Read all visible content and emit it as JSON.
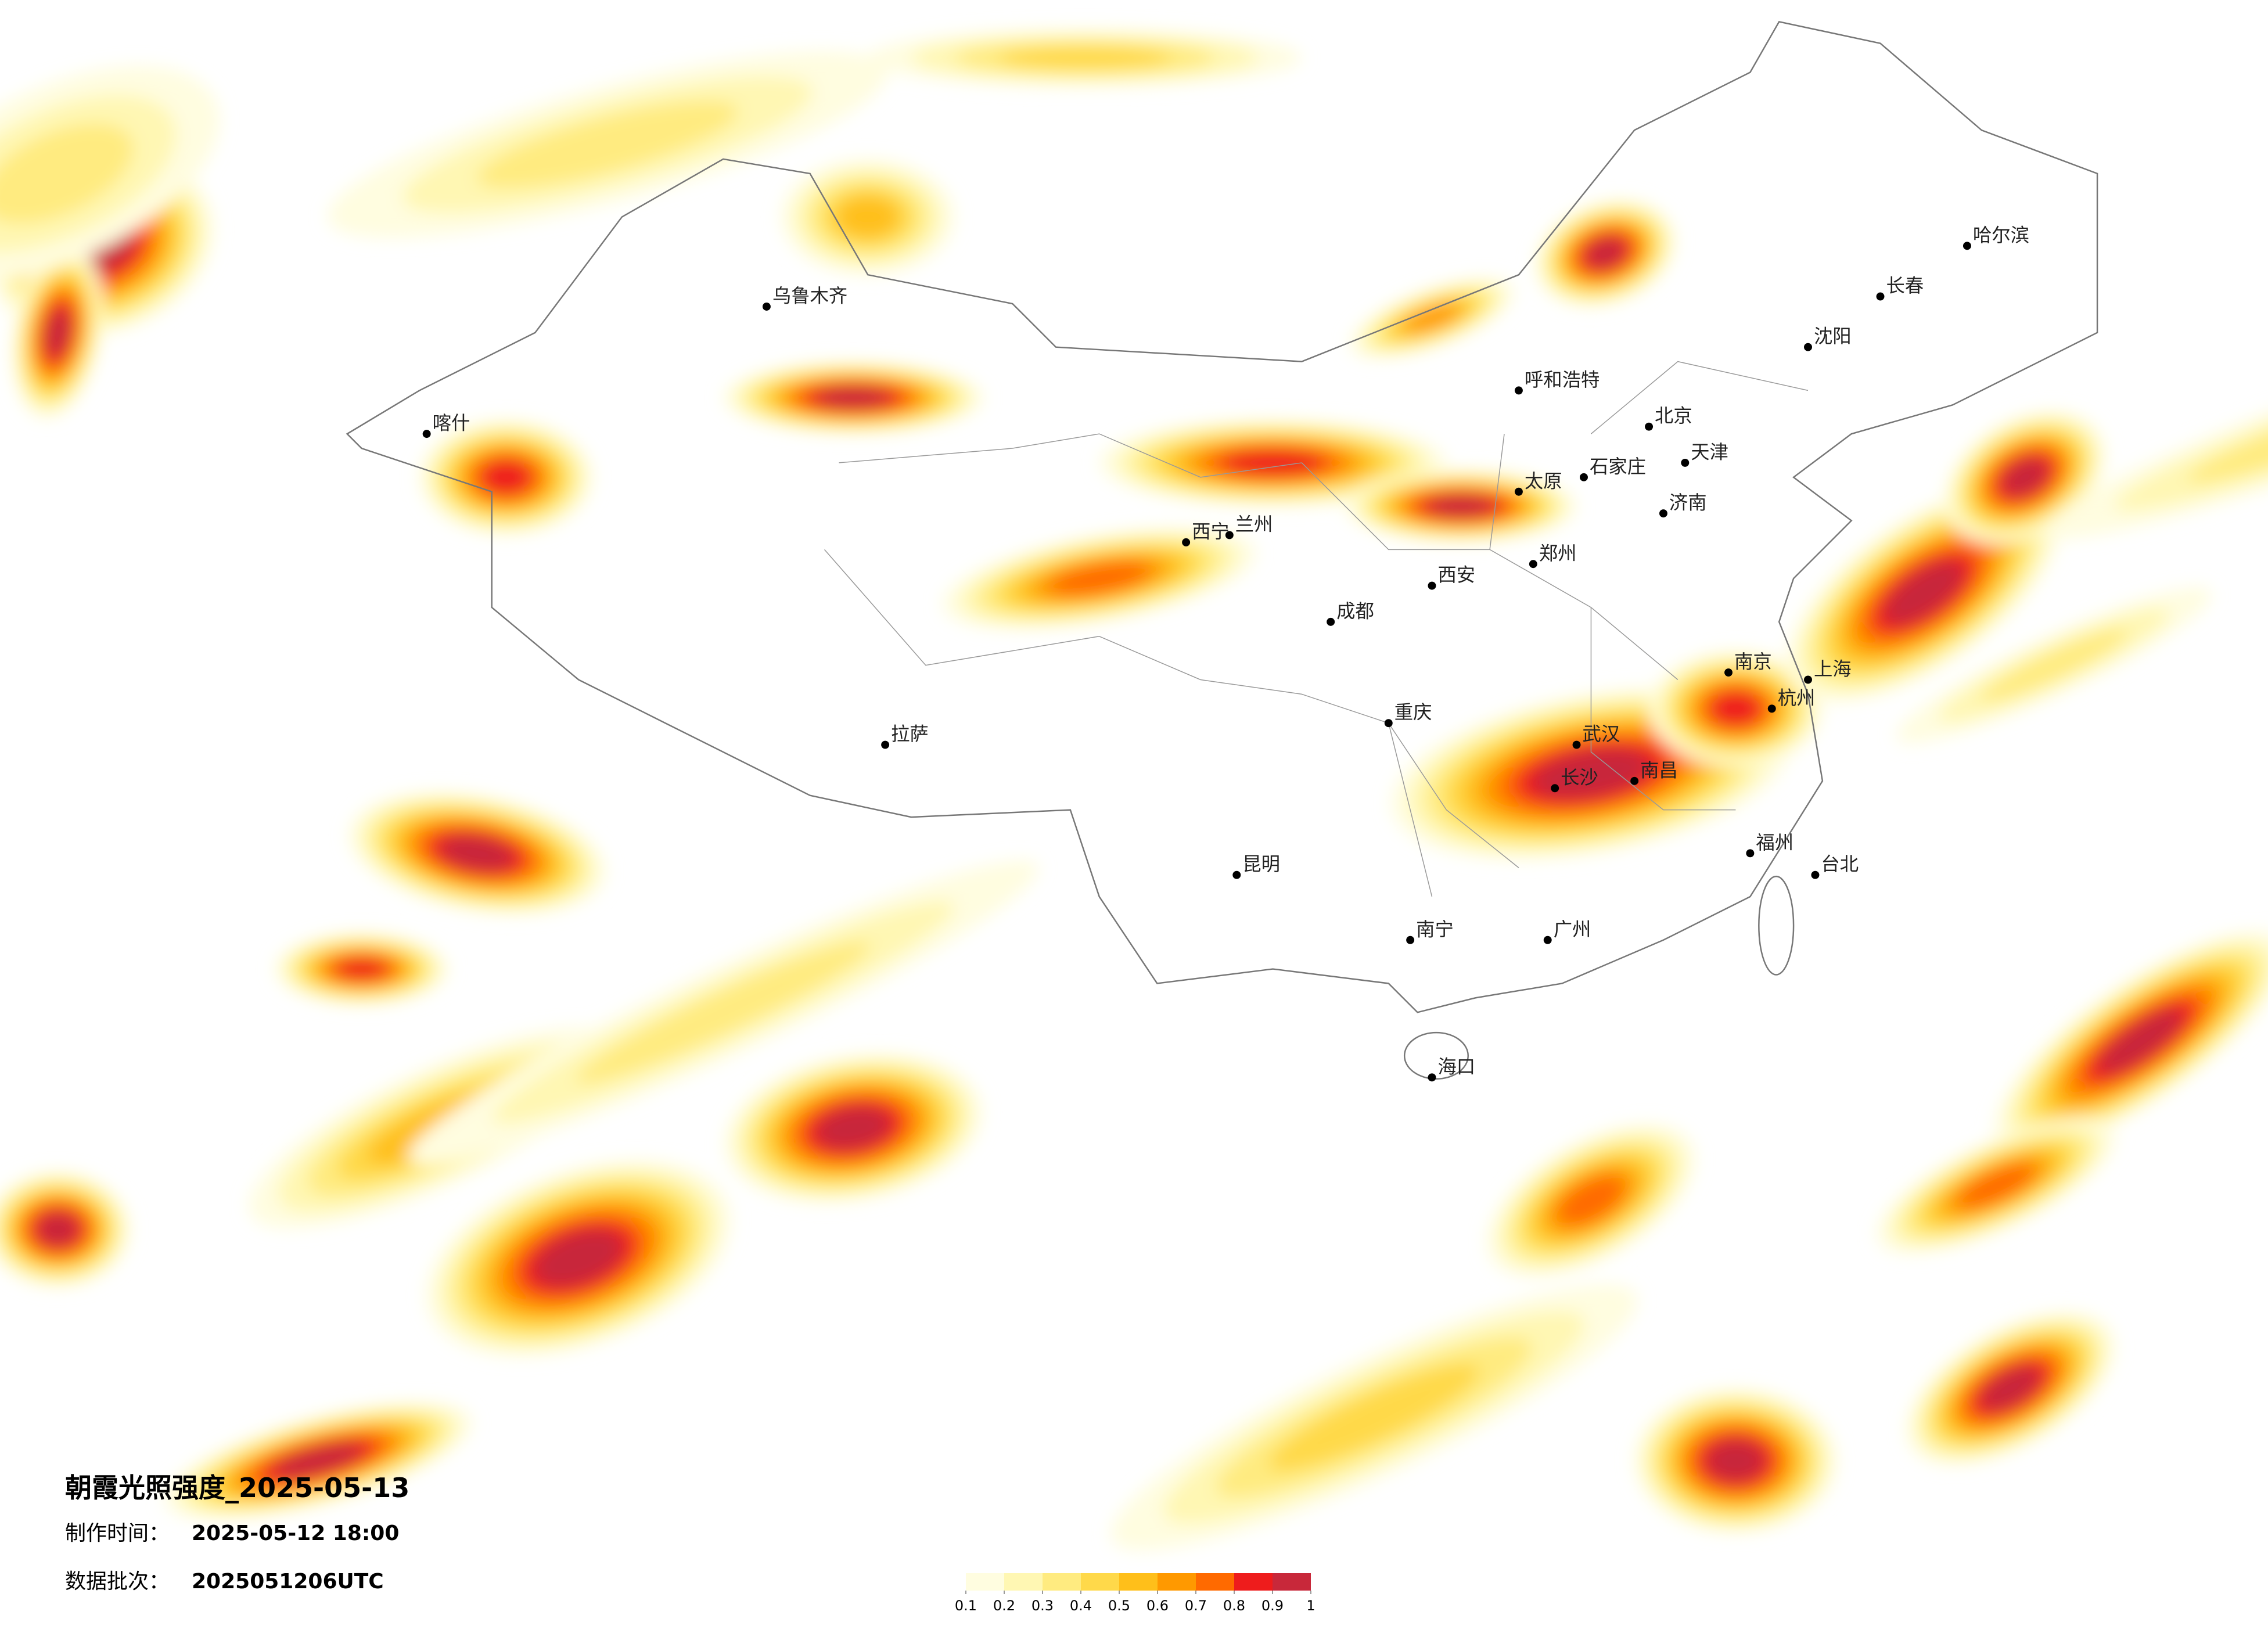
{
  "title": "朝霞光照强度_2025-05-13",
  "info": {
    "made_label": "制作时间：",
    "made_value": "2025-05-12 18:00",
    "batch_label": "数据批次：",
    "batch_value": "2025051206UTC"
  },
  "colorbar": {
    "ticks": [
      0.1,
      0.2,
      0.3,
      0.4,
      0.5,
      0.6,
      0.7,
      0.8,
      0.9,
      1
    ],
    "colors": [
      "#fffde0",
      "#fff7b3",
      "#ffeb80",
      "#ffd94a",
      "#ffbf1a",
      "#ff9900",
      "#ff6a00",
      "#ee1c1c",
      "#c8283a"
    ]
  },
  "cities": [
    "北京",
    "天津",
    "上海",
    "广州",
    "武汉",
    "哈尔滨",
    "乌鲁木齐",
    "喀什",
    "拉萨",
    "西宁",
    "兰州",
    "成都",
    "重庆",
    "昆明",
    "南宁",
    "海口",
    "台北",
    "西安",
    "郑州",
    "长沙",
    "南昌",
    "福州",
    "杭州",
    "南京",
    "济南",
    "石家庄",
    "太原",
    "呼和浩特",
    "沈阳",
    "长春"
  ]
}
